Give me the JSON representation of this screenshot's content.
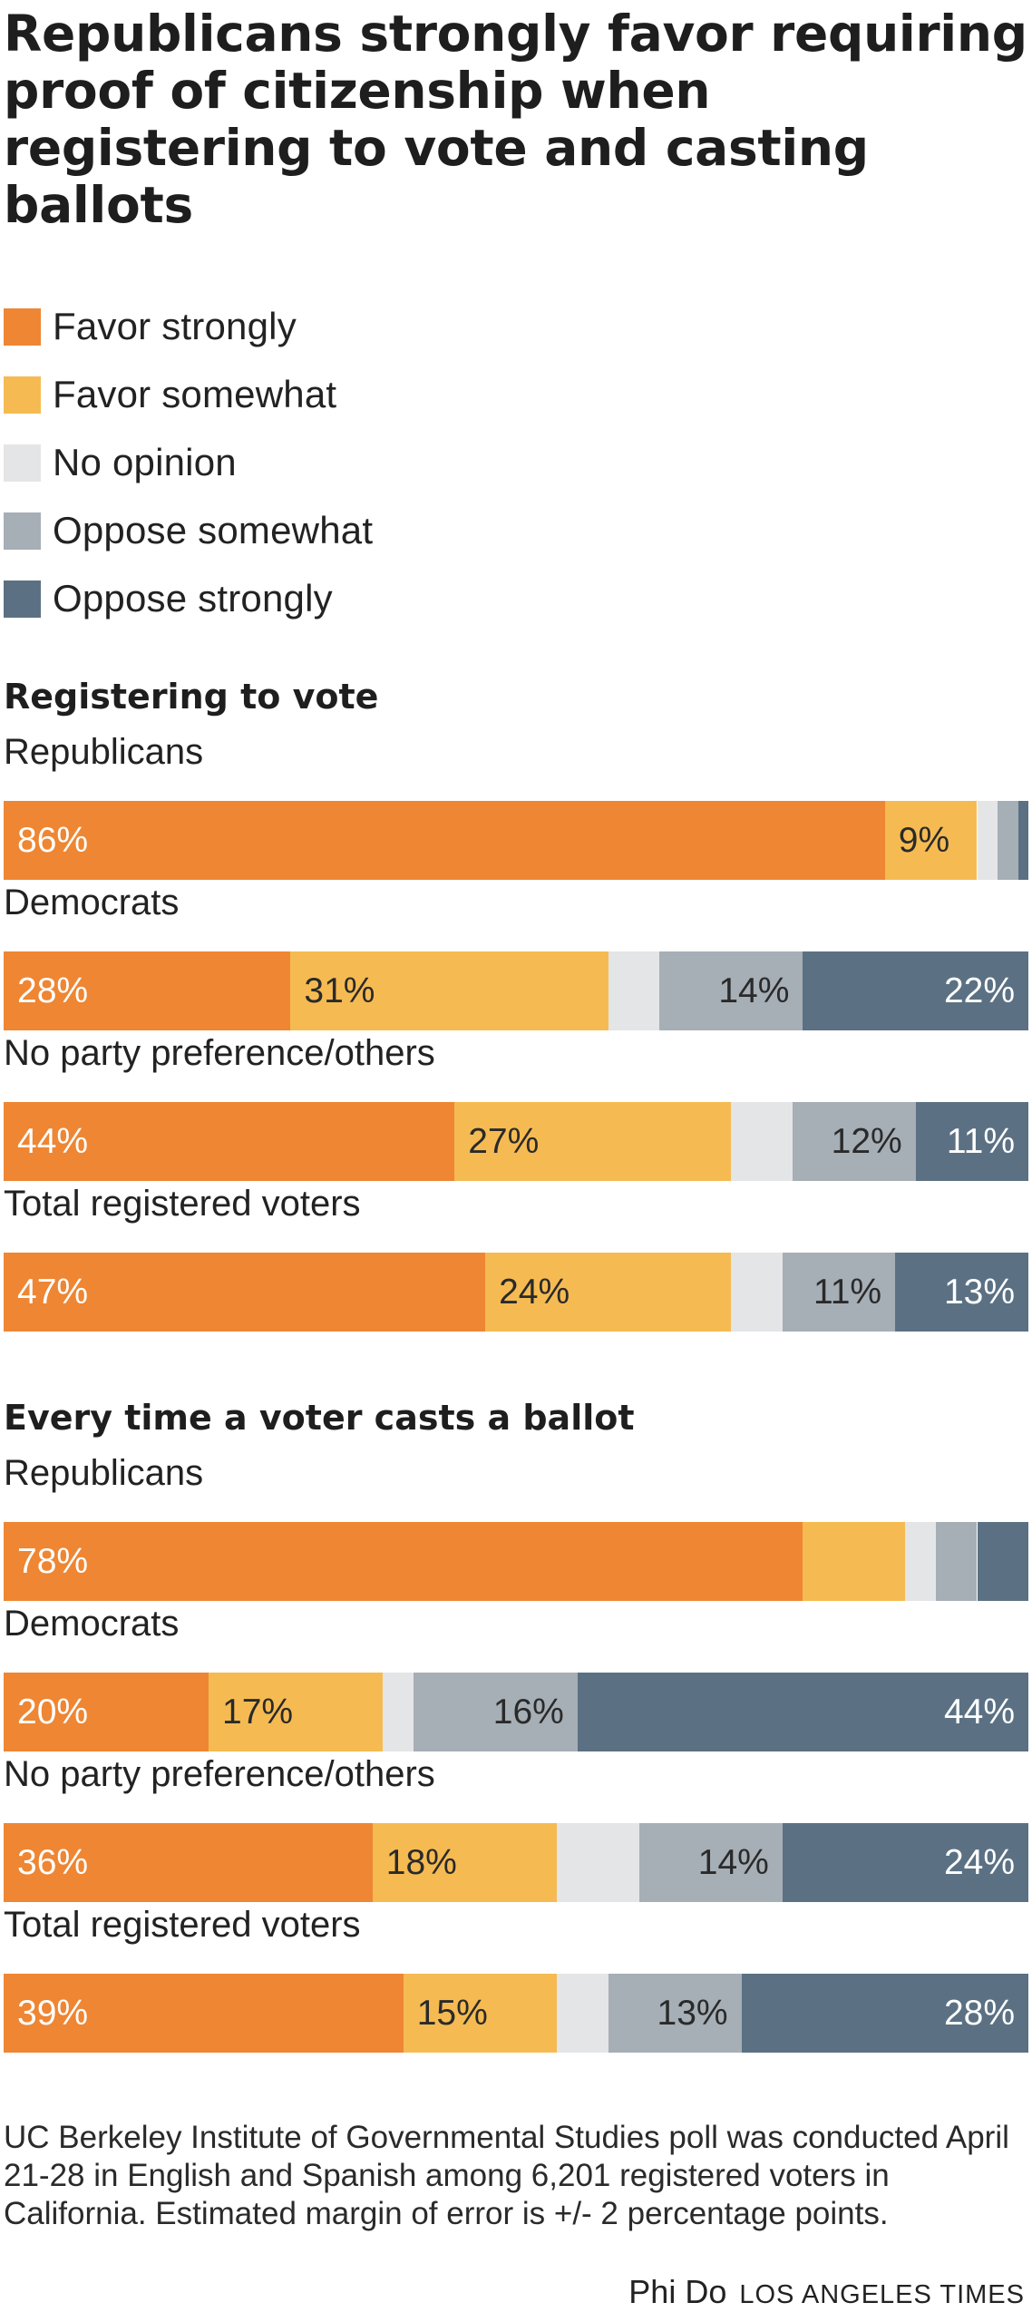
{
  "title": "Republicans strongly favor requiring proof of citizenship when registering to vote and casting ballots",
  "chart_data": {
    "type": "bar",
    "orientation": "horizontal",
    "stacked": true,
    "legend": [
      {
        "name": "Favor strongly",
        "color": "#ee8633"
      },
      {
        "name": "Favor somewhat",
        "color": "#f5bb52"
      },
      {
        "name": "No opinion",
        "color": "#e4e5e7"
      },
      {
        "name": "Oppose somewhat",
        "color": "#a6aeb6"
      },
      {
        "name": "Oppose strongly",
        "color": "#5b7183"
      }
    ],
    "label_colors": [
      "#ffffff",
      "#2a2a2a",
      "#2a2a2a",
      "#2a2a2a",
      "#ffffff"
    ],
    "sections": [
      {
        "title": "Registering to vote",
        "groups": [
          {
            "label": "Republicans",
            "values": [
              86,
              9,
              2,
              2,
              1
            ],
            "labels": [
              "86%",
              "9%",
              "",
              "",
              ""
            ]
          },
          {
            "label": "Democrats",
            "values": [
              28,
              31,
              5,
              14,
              22
            ],
            "labels": [
              "28%",
              "31%",
              "",
              "14%",
              "22%"
            ]
          },
          {
            "label": "No party preference/others",
            "values": [
              44,
              27,
              6,
              12,
              11
            ],
            "labels": [
              "44%",
              "27%",
              "",
              "12%",
              "11%"
            ]
          },
          {
            "label": "Total registered voters",
            "values": [
              47,
              24,
              5,
              11,
              13
            ],
            "labels": [
              "47%",
              "24%",
              "",
              "11%",
              "13%"
            ]
          }
        ]
      },
      {
        "title": "Every time a voter casts a ballot",
        "groups": [
          {
            "label": "Republicans",
            "values": [
              78,
              10,
              3,
              4,
              5
            ],
            "labels": [
              "78%",
              "",
              "",
              "",
              ""
            ]
          },
          {
            "label": "Democrats",
            "values": [
              20,
              17,
              3,
              16,
              44
            ],
            "labels": [
              "20%",
              "17%",
              "",
              "16%",
              "44%"
            ]
          },
          {
            "label": "No party preference/others",
            "values": [
              36,
              18,
              8,
              14,
              24
            ],
            "labels": [
              "36%",
              "18%",
              "",
              "14%",
              "24%"
            ]
          },
          {
            "label": "Total registered voters",
            "values": [
              39,
              15,
              5,
              13,
              28
            ],
            "labels": [
              "39%",
              "15%",
              "",
              "13%",
              "28%"
            ]
          }
        ]
      }
    ]
  },
  "footnote": "UC Berkeley Institute of Governmental Studies poll was conducted April 21-28 in English and Spanish among 6,201 registered voters in California. Estimated margin of error is +/- 2 percentage points.",
  "credit": {
    "author": "Phi Do",
    "source": "LOS ANGELES TIMES"
  }
}
